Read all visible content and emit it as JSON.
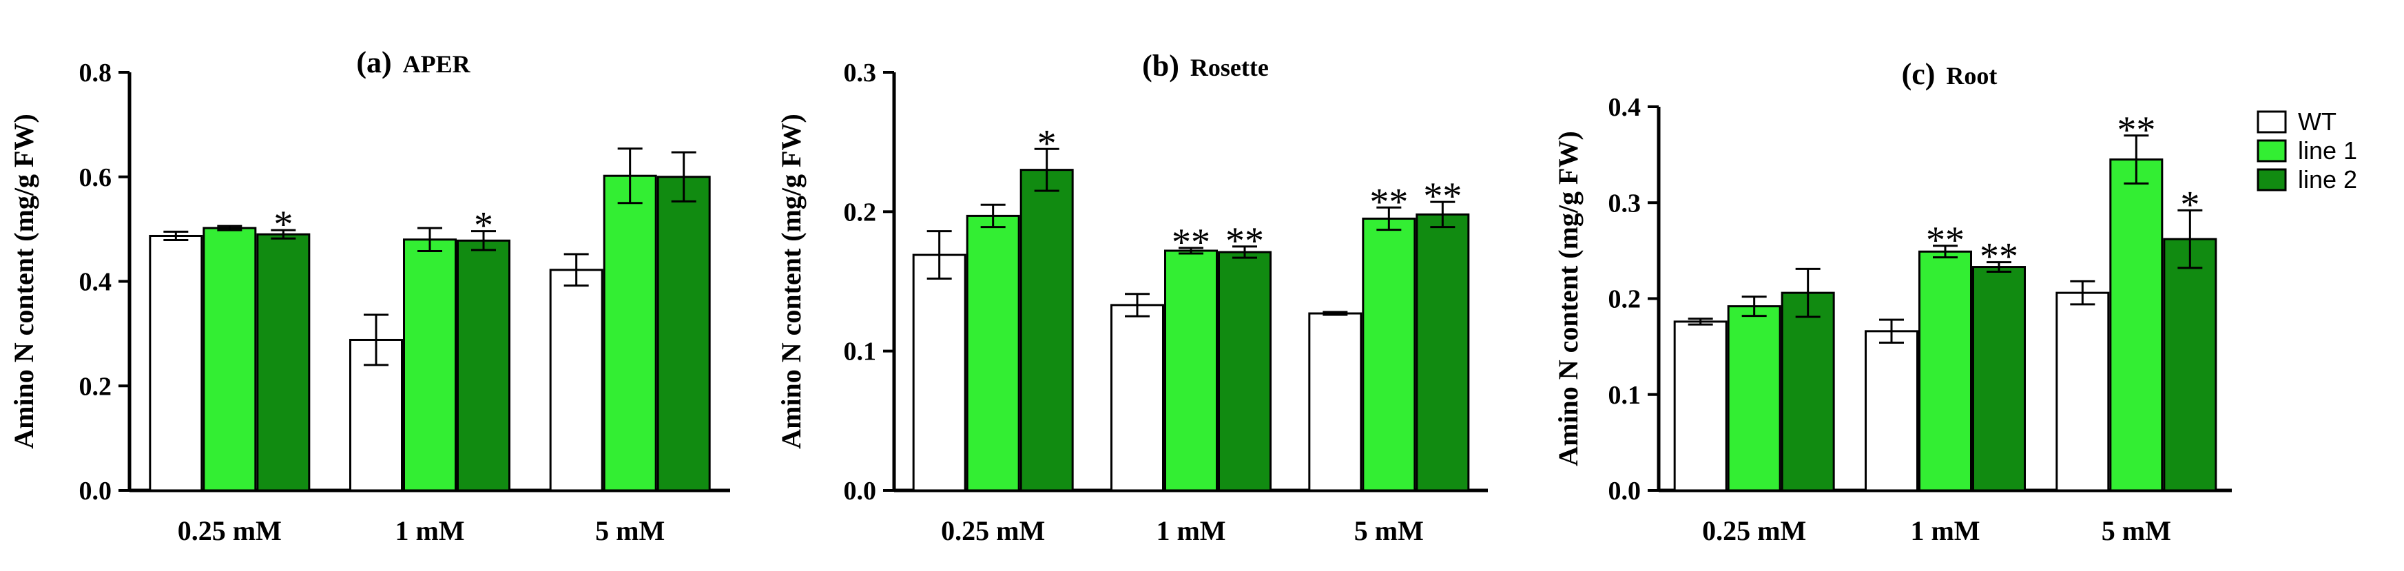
{
  "colors": {
    "WT": "#ffffff",
    "line 1": "#33ee33",
    "line 2": "#118b11"
  },
  "chart_data": [
    {
      "type": "bar",
      "panel": "(a)",
      "title": "APER",
      "ylabel": "Amino N content (mg/g FW)",
      "xlabel": "",
      "ylim": [
        0,
        0.8
      ],
      "yticks": [
        "0.0",
        "0.2",
        "0.4",
        "0.6",
        "0.8"
      ],
      "categories": [
        "0.25 mM",
        "1 mM",
        "5 mM"
      ],
      "series": [
        {
          "name": "WT",
          "values": [
            0.487,
            0.288,
            0.422
          ],
          "errors": [
            0.008,
            0.048,
            0.03
          ],
          "sig": [
            "",
            "",
            ""
          ]
        },
        {
          "name": "line 1",
          "values": [
            0.502,
            0.48,
            0.602
          ],
          "errors": [
            0.004,
            0.022,
            0.052
          ],
          "sig": [
            "",
            "",
            ""
          ]
        },
        {
          "name": "line 2",
          "values": [
            0.49,
            0.478,
            0.6
          ],
          "errors": [
            0.008,
            0.018,
            0.047
          ],
          "sig": [
            "*",
            "*",
            ""
          ]
        }
      ]
    },
    {
      "type": "bar",
      "panel": "(b)",
      "title": "Rosette",
      "ylabel": "Amino N content (mg/g FW)",
      "xlabel": "",
      "ylim": [
        0,
        0.3
      ],
      "yticks": [
        "0.0",
        "0.1",
        "0.2",
        "0.3"
      ],
      "categories": [
        "0.25 mM",
        "1 mM",
        "5 mM"
      ],
      "series": [
        {
          "name": "WT",
          "values": [
            0.169,
            0.133,
            0.127
          ],
          "errors": [
            0.017,
            0.008,
            0.001
          ],
          "sig": [
            "",
            "",
            ""
          ]
        },
        {
          "name": "line 1",
          "values": [
            0.197,
            0.172,
            0.195
          ],
          "errors": [
            0.008,
            0.002,
            0.008
          ],
          "sig": [
            "",
            "**",
            "**"
          ]
        },
        {
          "name": "line 2",
          "values": [
            0.23,
            0.171,
            0.198
          ],
          "errors": [
            0.015,
            0.004,
            0.009
          ],
          "sig": [
            "*",
            "**",
            "**"
          ]
        }
      ]
    },
    {
      "type": "bar",
      "panel": "(c)",
      "title": "Root",
      "ylabel": "Amino N content (mg/g FW)",
      "xlabel": "",
      "ylim": [
        0,
        0.4
      ],
      "yticks": [
        "0.0",
        "0.1",
        "0.2",
        "0.3",
        "0.4"
      ],
      "categories": [
        "0.25 mM",
        "1 mM",
        "5 mM"
      ],
      "series": [
        {
          "name": "WT",
          "values": [
            0.176,
            0.166,
            0.206
          ],
          "errors": [
            0.003,
            0.012,
            0.012
          ],
          "sig": [
            "",
            "",
            ""
          ]
        },
        {
          "name": "line 1",
          "values": [
            0.192,
            0.249,
            0.345
          ],
          "errors": [
            0.01,
            0.006,
            0.025
          ],
          "sig": [
            "",
            "**",
            "**"
          ]
        },
        {
          "name": "line 2",
          "values": [
            0.206,
            0.233,
            0.262
          ],
          "errors": [
            0.025,
            0.005,
            0.03
          ],
          "sig": [
            "",
            "**",
            "*"
          ]
        }
      ],
      "legend": {
        "position": "right",
        "entries": [
          "WT",
          "line 1",
          "line 2"
        ]
      }
    }
  ]
}
